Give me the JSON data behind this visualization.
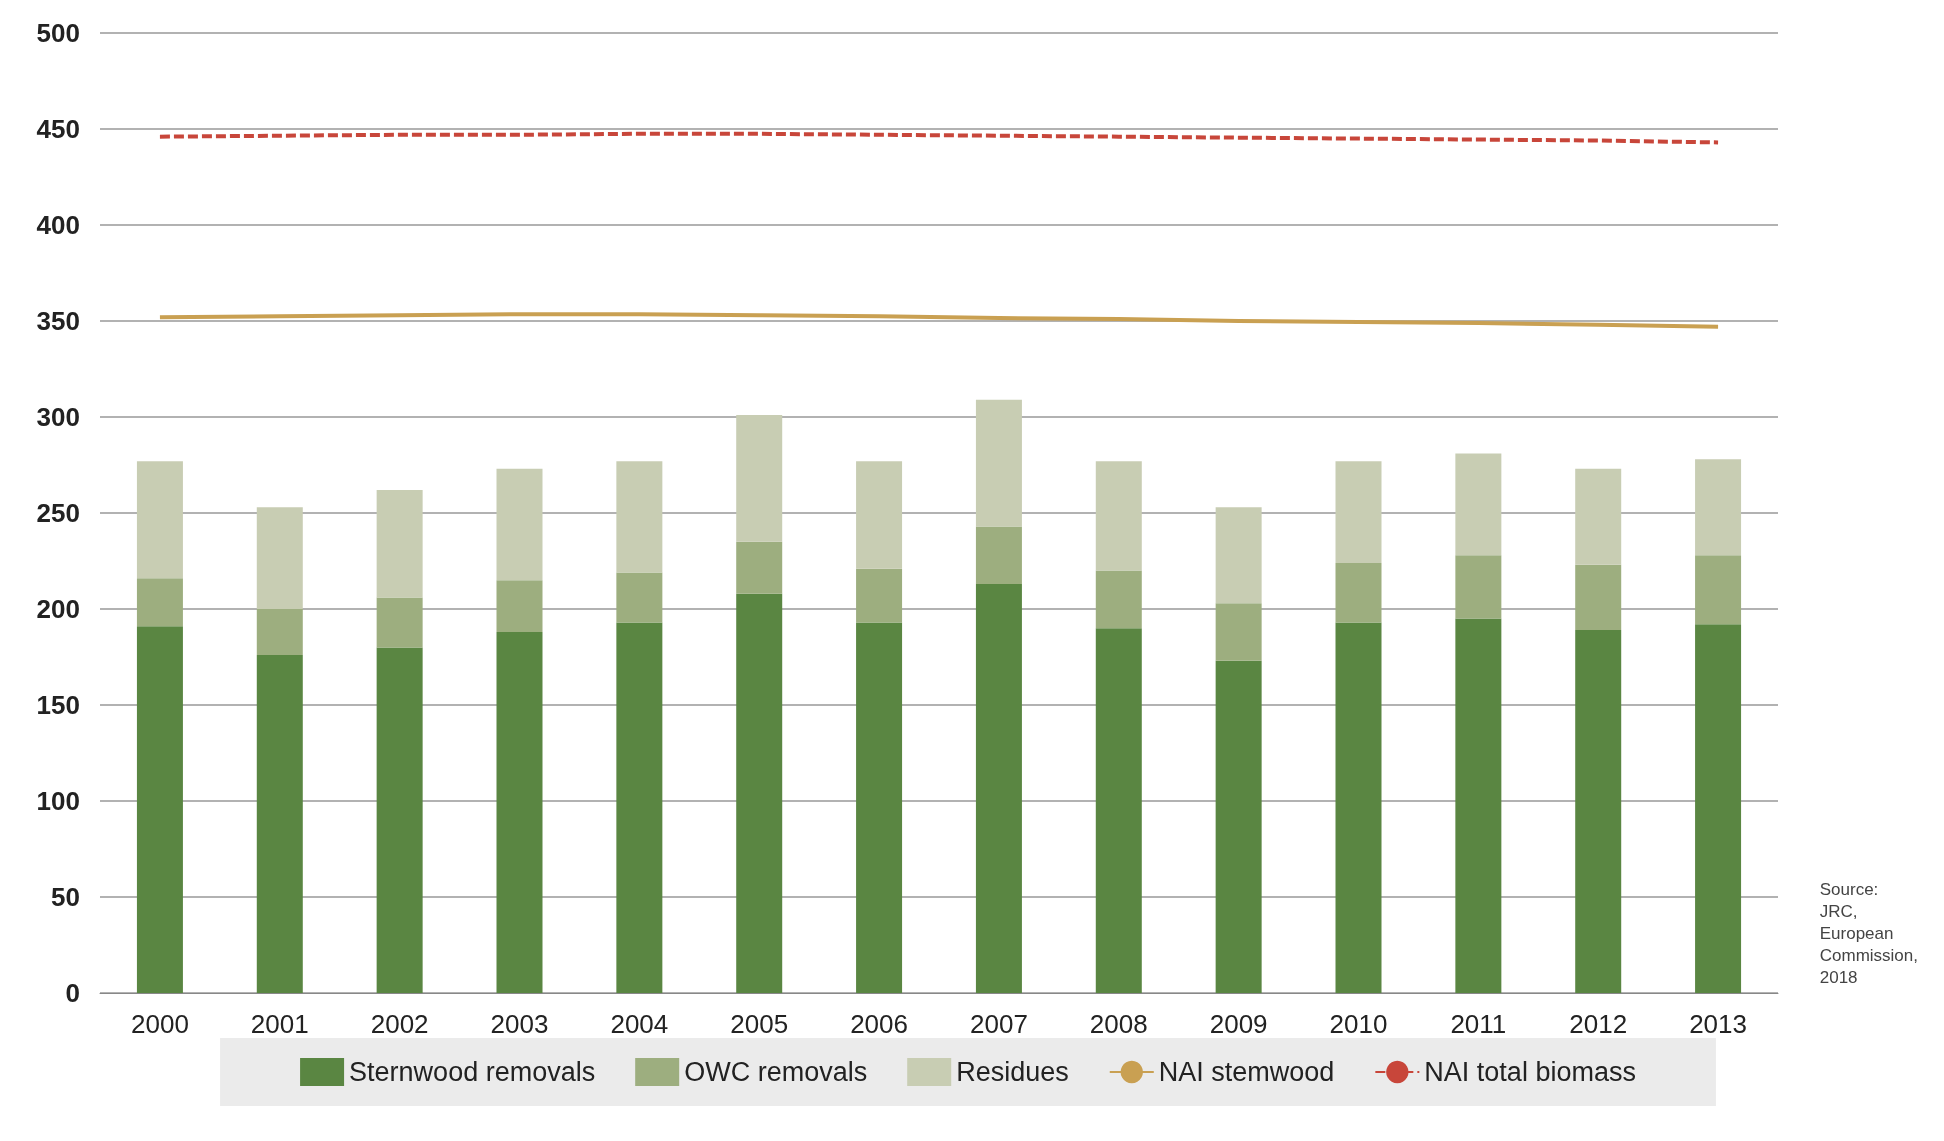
{
  "chart_data": {
    "type": "bar",
    "stacked": true,
    "categories": [
      "2000",
      "2001",
      "2002",
      "2003",
      "2004",
      "2005",
      "2006",
      "2007",
      "2008",
      "2009",
      "2010",
      "2011",
      "2012",
      "2013"
    ],
    "series": [
      {
        "name": "Sternwood removals",
        "color": "#5a8642",
        "values": [
          191,
          176,
          180,
          188,
          193,
          208,
          193,
          213,
          190,
          173,
          193,
          195,
          189,
          192
        ]
      },
      {
        "name": "OWC removals",
        "color": "#9dae7f",
        "values": [
          25,
          24,
          26,
          27,
          26,
          27,
          28,
          30,
          30,
          30,
          31,
          33,
          34,
          36
        ]
      },
      {
        "name": "Residues",
        "color": "#c8cdb3",
        "values": [
          61,
          53,
          56,
          58,
          58,
          66,
          56,
          66,
          57,
          50,
          53,
          53,
          50,
          50
        ]
      },
      {
        "name": "NAI stemwood",
        "type": "line",
        "color": "#c9a052",
        "line_style": "solid",
        "values": [
          352,
          352.5,
          353,
          353.5,
          353.5,
          353,
          352.5,
          351.5,
          351,
          350,
          349.5,
          349,
          348,
          347
        ]
      },
      {
        "name": "NAI total biomass",
        "type": "line",
        "color": "#c8463a",
        "line_style": "dashed",
        "values": [
          446,
          446.5,
          447,
          447,
          447.5,
          447.5,
          447,
          446.5,
          446,
          445.5,
          445,
          444.5,
          444,
          443
        ]
      }
    ],
    "ylim": [
      0,
      500
    ],
    "yticks": [
      0,
      50,
      100,
      150,
      200,
      250,
      300,
      350,
      400,
      450,
      500
    ],
    "grid": "y",
    "legend": "bottom",
    "marker": "none",
    "annotations": [
      "Source:\nJRC,\nEuropean\nCommission,\n2018"
    ]
  }
}
